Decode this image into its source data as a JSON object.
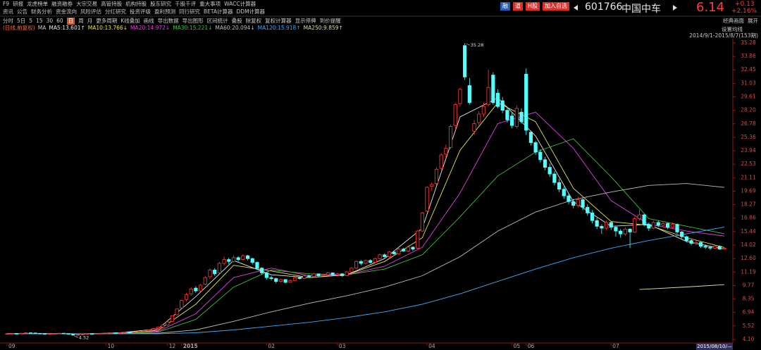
{
  "ui": {
    "menu_row1": [
      "F9",
      "研报",
      "龙虎榜单",
      "融资融券",
      "大宗交易",
      "高管持股",
      "机构持股",
      "股东研究",
      "千股千评",
      "重大事项",
      "WACC计算器"
    ],
    "menu_row2": [
      "资讯",
      "公告",
      "财务分析",
      "资金流向",
      "风险评估",
      "分红研究",
      "投资评级",
      "盈利预测",
      "同行研究",
      "BETA计算器",
      "DDM计算器"
    ],
    "buttons": [
      "融",
      "道",
      "H股",
      "加入自选"
    ],
    "button_colors": [
      "#2a5db0",
      "#d9302a",
      "#d9302a",
      "#d9302a"
    ],
    "stock_code": "601766",
    "stock_name": "中国中车",
    "price": "6.14",
    "change": "+0.13",
    "change_pct": "+2.16%",
    "toolbar": [
      "分时",
      "5日",
      "5",
      "15",
      "30",
      "60",
      "日",
      "周",
      "月",
      "更多周期",
      "K线叠加",
      "画线",
      "导出数据",
      "导出图形",
      "区间统计",
      "叠股",
      "除复权",
      "复权计算器",
      "显示停牌",
      "到价提醒"
    ],
    "toolbar_active": 6,
    "toolbar_right": [
      "经典画面",
      "展开"
    ],
    "ma_settings": "设置均线",
    "date_range": "2014/9/1-2015/8/7(153期)",
    "cursor_date": "2015/08/10/—"
  },
  "chart_data": {
    "type": "candlestick",
    "subtitle": "(日线,前复权)",
    "legend_title": "MA",
    "up_color": "#ff3c3c",
    "down_color": "#54ffff",
    "ohlc": [
      [
        4.66,
        4.74,
        4.63,
        4.7
      ],
      [
        4.7,
        4.76,
        4.67,
        4.72
      ],
      [
        4.72,
        4.74,
        4.65,
        4.68
      ],
      [
        4.68,
        4.78,
        4.66,
        4.75
      ],
      [
        4.75,
        4.84,
        4.73,
        4.8
      ],
      [
        4.8,
        4.83,
        4.75,
        4.78
      ],
      [
        4.78,
        4.8,
        4.71,
        4.74
      ],
      [
        4.74,
        4.76,
        4.67,
        4.7
      ],
      [
        4.7,
        4.72,
        4.62,
        4.66
      ],
      [
        4.66,
        4.72,
        4.64,
        4.69
      ],
      [
        4.69,
        4.75,
        4.67,
        4.72
      ],
      [
        4.72,
        4.78,
        4.7,
        4.75
      ],
      [
        4.75,
        4.77,
        4.69,
        4.71
      ],
      [
        4.71,
        4.73,
        4.64,
        4.68
      ],
      [
        4.66,
        4.68,
        4.52,
        4.55
      ],
      [
        4.55,
        4.63,
        4.53,
        4.6
      ],
      [
        4.6,
        4.68,
        4.58,
        4.65
      ],
      [
        4.65,
        4.73,
        4.63,
        4.7
      ],
      [
        4.7,
        4.72,
        4.65,
        4.68
      ],
      [
        4.68,
        4.75,
        4.66,
        4.72
      ],
      [
        4.72,
        4.77,
        4.7,
        4.74
      ],
      [
        4.74,
        4.79,
        4.72,
        4.76
      ],
      [
        4.76,
        4.83,
        4.74,
        4.8
      ],
      [
        4.8,
        4.82,
        4.75,
        4.78
      ],
      [
        4.78,
        4.85,
        4.76,
        4.82
      ],
      [
        4.82,
        4.88,
        4.8,
        4.85
      ],
      [
        4.85,
        4.87,
        4.8,
        4.83
      ],
      [
        4.83,
        4.91,
        4.81,
        4.88
      ],
      [
        4.88,
        4.98,
        4.86,
        4.95
      ],
      [
        4.95,
        5.06,
        4.93,
        5.02
      ],
      [
        5.02,
        5.14,
        5.0,
        5.1
      ],
      [
        5.1,
        5.3,
        5.08,
        5.25
      ],
      [
        5.25,
        5.45,
        5.22,
        5.4
      ],
      [
        5.4,
        5.66,
        5.38,
        5.6
      ],
      [
        5.6,
        6.05,
        5.55,
        5.95
      ],
      [
        6.0,
        6.62,
        5.95,
        6.6
      ],
      [
        6.7,
        7.35,
        6.6,
        7.3
      ],
      [
        7.4,
        8.25,
        7.3,
        8.2
      ],
      [
        8.3,
        9.0,
        8.1,
        8.8
      ],
      [
        8.9,
        9.6,
        8.7,
        9.4
      ],
      [
        9.5,
        9.7,
        9.0,
        9.2
      ],
      [
        9.2,
        9.95,
        9.1,
        9.8
      ],
      [
        9.9,
        10.75,
        9.8,
        10.6
      ],
      [
        10.7,
        11.6,
        10.5,
        11.4
      ],
      [
        11.4,
        11.6,
        10.8,
        11.0
      ],
      [
        11.1,
        12.25,
        11.0,
        12.1
      ],
      [
        12.1,
        12.8,
        11.9,
        12.5
      ],
      [
        12.5,
        12.7,
        12.0,
        12.3
      ],
      [
        12.3,
        12.95,
        12.2,
        12.7
      ],
      [
        12.7,
        12.85,
        12.3,
        12.5
      ],
      [
        12.5,
        13.05,
        12.4,
        12.9
      ],
      [
        12.9,
        13.0,
        12.4,
        12.6
      ],
      [
        12.6,
        12.7,
        12.0,
        12.2
      ],
      [
        12.2,
        12.3,
        11.4,
        11.6
      ],
      [
        11.6,
        11.7,
        10.9,
        11.1
      ],
      [
        11.1,
        11.2,
        10.4,
        10.6
      ],
      [
        10.6,
        10.8,
        10.3,
        10.5
      ],
      [
        10.5,
        10.6,
        10.0,
        10.2
      ],
      [
        10.2,
        10.5,
        10.1,
        10.4
      ],
      [
        10.4,
        10.45,
        10.0,
        10.1
      ],
      [
        10.1,
        10.4,
        10.05,
        10.3
      ],
      [
        10.3,
        10.7,
        10.25,
        10.6
      ],
      [
        10.6,
        10.7,
        10.4,
        10.5
      ],
      [
        10.5,
        10.9,
        10.45,
        10.8
      ],
      [
        10.8,
        10.9,
        10.6,
        10.7
      ],
      [
        10.7,
        11.1,
        10.65,
        11.0
      ],
      [
        11.0,
        11.05,
        10.7,
        10.8
      ],
      [
        10.8,
        11.0,
        10.75,
        10.9
      ],
      [
        10.9,
        11.2,
        10.85,
        11.1
      ],
      [
        11.1,
        11.15,
        10.8,
        10.9
      ],
      [
        10.9,
        11.1,
        10.85,
        11.0
      ],
      [
        11.0,
        11.05,
        10.7,
        10.8
      ],
      [
        10.8,
        11.3,
        10.75,
        11.2
      ],
      [
        11.2,
        11.7,
        11.1,
        11.6
      ],
      [
        11.6,
        12.4,
        11.5,
        12.3
      ],
      [
        12.3,
        12.45,
        11.9,
        12.1
      ],
      [
        12.1,
        12.5,
        12.0,
        12.4
      ],
      [
        12.4,
        12.55,
        12.1,
        12.2
      ],
      [
        12.2,
        12.7,
        12.1,
        12.6
      ],
      [
        12.6,
        13.1,
        12.5,
        13.0
      ],
      [
        13.0,
        13.15,
        12.7,
        12.8
      ],
      [
        12.8,
        13.4,
        12.7,
        13.3
      ],
      [
        13.3,
        13.45,
        13.0,
        13.1
      ],
      [
        13.1,
        13.7,
        13.0,
        13.6
      ],
      [
        13.6,
        13.75,
        13.3,
        13.4
      ],
      [
        13.4,
        13.95,
        13.3,
        13.8
      ],
      [
        13.8,
        13.9,
        13.4,
        13.6
      ],
      [
        13.7,
        15.6,
        13.6,
        15.5
      ],
      [
        15.5,
        17.5,
        15.4,
        17.4
      ],
      [
        17.6,
        20.2,
        17.5,
        20.1
      ],
      [
        20.2,
        20.6,
        19.7,
        20.4
      ],
      [
        20.5,
        22.2,
        20.3,
        22.0
      ],
      [
        22.1,
        23.7,
        21.9,
        23.5
      ],
      [
        23.6,
        24.6,
        23.2,
        24.2
      ],
      [
        24.3,
        26.7,
        24.1,
        26.5
      ],
      [
        26.6,
        29.0,
        26.3,
        28.8
      ],
      [
        28.9,
        30.6,
        28.6,
        30.4
      ],
      [
        35.0,
        35.28,
        31.4,
        31.7
      ],
      [
        30.8,
        31.6,
        28.8,
        29.0
      ],
      [
        26.0,
        27.2,
        25.6,
        26.8
      ],
      [
        26.9,
        28.1,
        26.6,
        27.8
      ],
      [
        27.8,
        29.0,
        27.5,
        28.6
      ],
      [
        28.8,
        32.45,
        28.6,
        30.6
      ],
      [
        31.9,
        32.2,
        28.8,
        29.0
      ],
      [
        30.0,
        30.4,
        28.4,
        28.6
      ],
      [
        29.2,
        29.6,
        27.9,
        28.2
      ],
      [
        28.2,
        28.6,
        26.9,
        27.2
      ],
      [
        27.6,
        28.0,
        26.3,
        26.6
      ],
      [
        26.5,
        28.7,
        26.3,
        28.4
      ],
      [
        28.0,
        28.4,
        26.8,
        27.0
      ],
      [
        32.0,
        32.6,
        25.6,
        26.1
      ],
      [
        25.9,
        26.0,
        24.5,
        24.8
      ],
      [
        24.8,
        25.0,
        23.5,
        23.8
      ],
      [
        23.8,
        24.1,
        22.7,
        23.0
      ],
      [
        23.0,
        23.3,
        21.9,
        22.2
      ],
      [
        22.2,
        22.6,
        21.2,
        21.5
      ],
      [
        21.5,
        21.8,
        20.3,
        20.6
      ],
      [
        20.6,
        21.0,
        19.6,
        19.9
      ],
      [
        19.9,
        20.2,
        18.9,
        19.2
      ],
      [
        19.2,
        19.5,
        18.3,
        18.6
      ],
      [
        18.6,
        18.9,
        17.9,
        18.2
      ],
      [
        18.2,
        19.1,
        18.0,
        18.8
      ],
      [
        18.8,
        19.0,
        17.7,
        18.0
      ],
      [
        18.0,
        18.3,
        17.1,
        17.4
      ],
      [
        17.4,
        17.7,
        16.3,
        16.6
      ],
      [
        16.6,
        16.9,
        15.7,
        16.0
      ],
      [
        16.0,
        16.2,
        15.2,
        15.8
      ],
      [
        15.8,
        16.6,
        15.6,
        16.4
      ],
      [
        16.4,
        16.5,
        15.6,
        15.9
      ],
      [
        15.9,
        16.0,
        14.9,
        15.5
      ],
      [
        15.5,
        15.7,
        14.8,
        15.2
      ],
      [
        15.2,
        15.9,
        15.0,
        15.7
      ],
      [
        15.7,
        15.8,
        13.7,
        15.4
      ],
      [
        15.4,
        17.0,
        15.3,
        16.8
      ],
      [
        16.8,
        17.8,
        16.6,
        17.2
      ],
      [
        17.2,
        17.3,
        16.0,
        16.2
      ],
      [
        16.2,
        16.4,
        15.5,
        15.8
      ],
      [
        15.8,
        16.6,
        15.7,
        16.4
      ],
      [
        16.4,
        16.6,
        15.9,
        16.1
      ],
      [
        16.1,
        16.5,
        15.9,
        16.3
      ],
      [
        16.3,
        16.4,
        15.7,
        15.9
      ],
      [
        15.9,
        16.4,
        15.8,
        16.2
      ],
      [
        16.2,
        16.3,
        15.2,
        15.4
      ],
      [
        15.4,
        15.5,
        14.7,
        14.9
      ],
      [
        14.9,
        15.0,
        14.3,
        14.5
      ],
      [
        14.5,
        14.7,
        14.0,
        14.2
      ],
      [
        14.2,
        14.5,
        14.0,
        14.3
      ],
      [
        14.3,
        14.4,
        13.7,
        13.9
      ],
      [
        13.9,
        14.1,
        13.6,
        13.8
      ],
      [
        13.8,
        13.9,
        13.5,
        13.7
      ],
      [
        13.7,
        14.0,
        13.6,
        13.9
      ],
      [
        13.9,
        14.0,
        13.5,
        13.6
      ],
      [
        13.6,
        13.8,
        13.5,
        13.7
      ]
    ],
    "series": [
      {
        "name": "MA5:13.601↑",
        "color": "#e8e8e8",
        "x": [
          0,
          8,
          16,
          24,
          32,
          40,
          48,
          56,
          64,
          72,
          80,
          88,
          96,
          104,
          112,
          120,
          128,
          136,
          144,
          152
        ],
        "values": [
          4.72,
          4.71,
          4.67,
          4.8,
          5.2,
          8.6,
          12.4,
          10.9,
          10.6,
          10.9,
          12.6,
          15.8,
          27.5,
          29.5,
          25.5,
          18.6,
          16.0,
          16.2,
          14.4,
          13.6
        ]
      },
      {
        "name": "MA10:13.766↓",
        "color": "#e6e64c",
        "x": [
          0,
          8,
          16,
          24,
          32,
          40,
          48,
          56,
          64,
          72,
          80,
          88,
          96,
          104,
          112,
          120,
          128,
          136,
          144,
          152
        ],
        "values": [
          4.72,
          4.72,
          4.69,
          4.78,
          5.05,
          7.8,
          11.9,
          11.3,
          10.6,
          10.9,
          12.3,
          14.8,
          24.0,
          29.0,
          27.0,
          20.0,
          16.5,
          16.1,
          14.8,
          13.77
        ]
      },
      {
        "name": "MA20:14.972↓",
        "color": "#e040e0",
        "x": [
          0,
          8,
          16,
          24,
          32,
          40,
          48,
          56,
          64,
          72,
          80,
          88,
          96,
          104,
          112,
          120,
          128,
          136,
          144,
          152
        ],
        "values": [
          4.72,
          4.72,
          4.7,
          4.75,
          4.95,
          6.8,
          10.6,
          11.6,
          10.8,
          10.9,
          11.8,
          13.8,
          19.5,
          26.8,
          28.0,
          24.2,
          18.7,
          16.2,
          15.5,
          14.97
        ]
      },
      {
        "name": "MA30:15.221↓",
        "color": "#40c040",
        "x": [
          0,
          8,
          16,
          24,
          32,
          40,
          48,
          56,
          64,
          72,
          80,
          88,
          96,
          104,
          112,
          120,
          128,
          136,
          144,
          152
        ],
        "values": [
          4.7,
          4.7,
          4.7,
          4.73,
          4.88,
          6.2,
          9.6,
          11.4,
          11.0,
          10.9,
          11.5,
          13.0,
          17.0,
          21.3,
          23.8,
          25.2,
          21.2,
          16.8,
          16.0,
          15.22
        ]
      },
      {
        "name": "MA60:20.094↓",
        "color": "#bdbdbd",
        "x": [
          0,
          8,
          16,
          24,
          32,
          40,
          48,
          56,
          64,
          72,
          80,
          88,
          96,
          104,
          112,
          120,
          128,
          136,
          144,
          152
        ],
        "values": [
          4.7,
          4.7,
          4.7,
          4.7,
          4.75,
          5.1,
          6.0,
          7.0,
          7.9,
          8.7,
          9.6,
          10.8,
          12.8,
          15.5,
          17.5,
          18.8,
          19.6,
          20.3,
          20.5,
          20.09
        ]
      },
      {
        "name": "MA120:15.918↑",
        "color": "#3fa9f5",
        "x": [
          0,
          8,
          16,
          24,
          32,
          40,
          48,
          56,
          64,
          72,
          80,
          88,
          96,
          104,
          112,
          120,
          128,
          136,
          144,
          152
        ],
        "values": [
          4.7,
          4.7,
          4.7,
          4.7,
          4.7,
          4.8,
          5.1,
          5.5,
          5.9,
          6.4,
          7.0,
          7.8,
          8.9,
          10.2,
          11.5,
          12.7,
          13.7,
          14.5,
          15.2,
          15.92
        ]
      },
      {
        "name": "MA250:9.859↑",
        "color": "#e0dca0",
        "x": [
          134,
          144,
          152
        ],
        "values": [
          9.35,
          9.62,
          9.86
        ]
      }
    ],
    "annotations": [
      {
        "x": 97,
        "value": 35.28
      },
      {
        "x": 14,
        "value": 4.52
      }
    ],
    "xlim": [
      0,
      152
    ],
    "xticks": [
      {
        "value": 0,
        "label": "09"
      },
      {
        "value": 21,
        "label": "10"
      },
      {
        "value": 34,
        "label": "12"
      },
      {
        "value": 37,
        "label": "2015"
      },
      {
        "value": 55,
        "label": "02"
      },
      {
        "value": 70,
        "label": "03"
      },
      {
        "value": 89,
        "label": "04"
      },
      {
        "value": 107,
        "label": "05"
      },
      {
        "value": 110,
        "label": "06"
      },
      {
        "value": 128,
        "label": "07"
      }
    ],
    "ylim": [
      4.1,
      35.28
    ],
    "yticks": [
      35.28,
      33.86,
      32.45,
      31.03,
      29.61,
      {
        "value": 28.2,
        "label": "28.20"
      },
      26.78,
      25.36,
      23.94,
      22.53,
      21.11,
      19.69,
      18.27,
      16.86,
      15.44,
      14.02,
      {
        "value": 12.6,
        "label": "12.60"
      },
      11.19,
      9.77,
      8.35,
      6.94,
      5.52,
      {
        "value": 4.1,
        "label": "4.10"
      }
    ]
  }
}
